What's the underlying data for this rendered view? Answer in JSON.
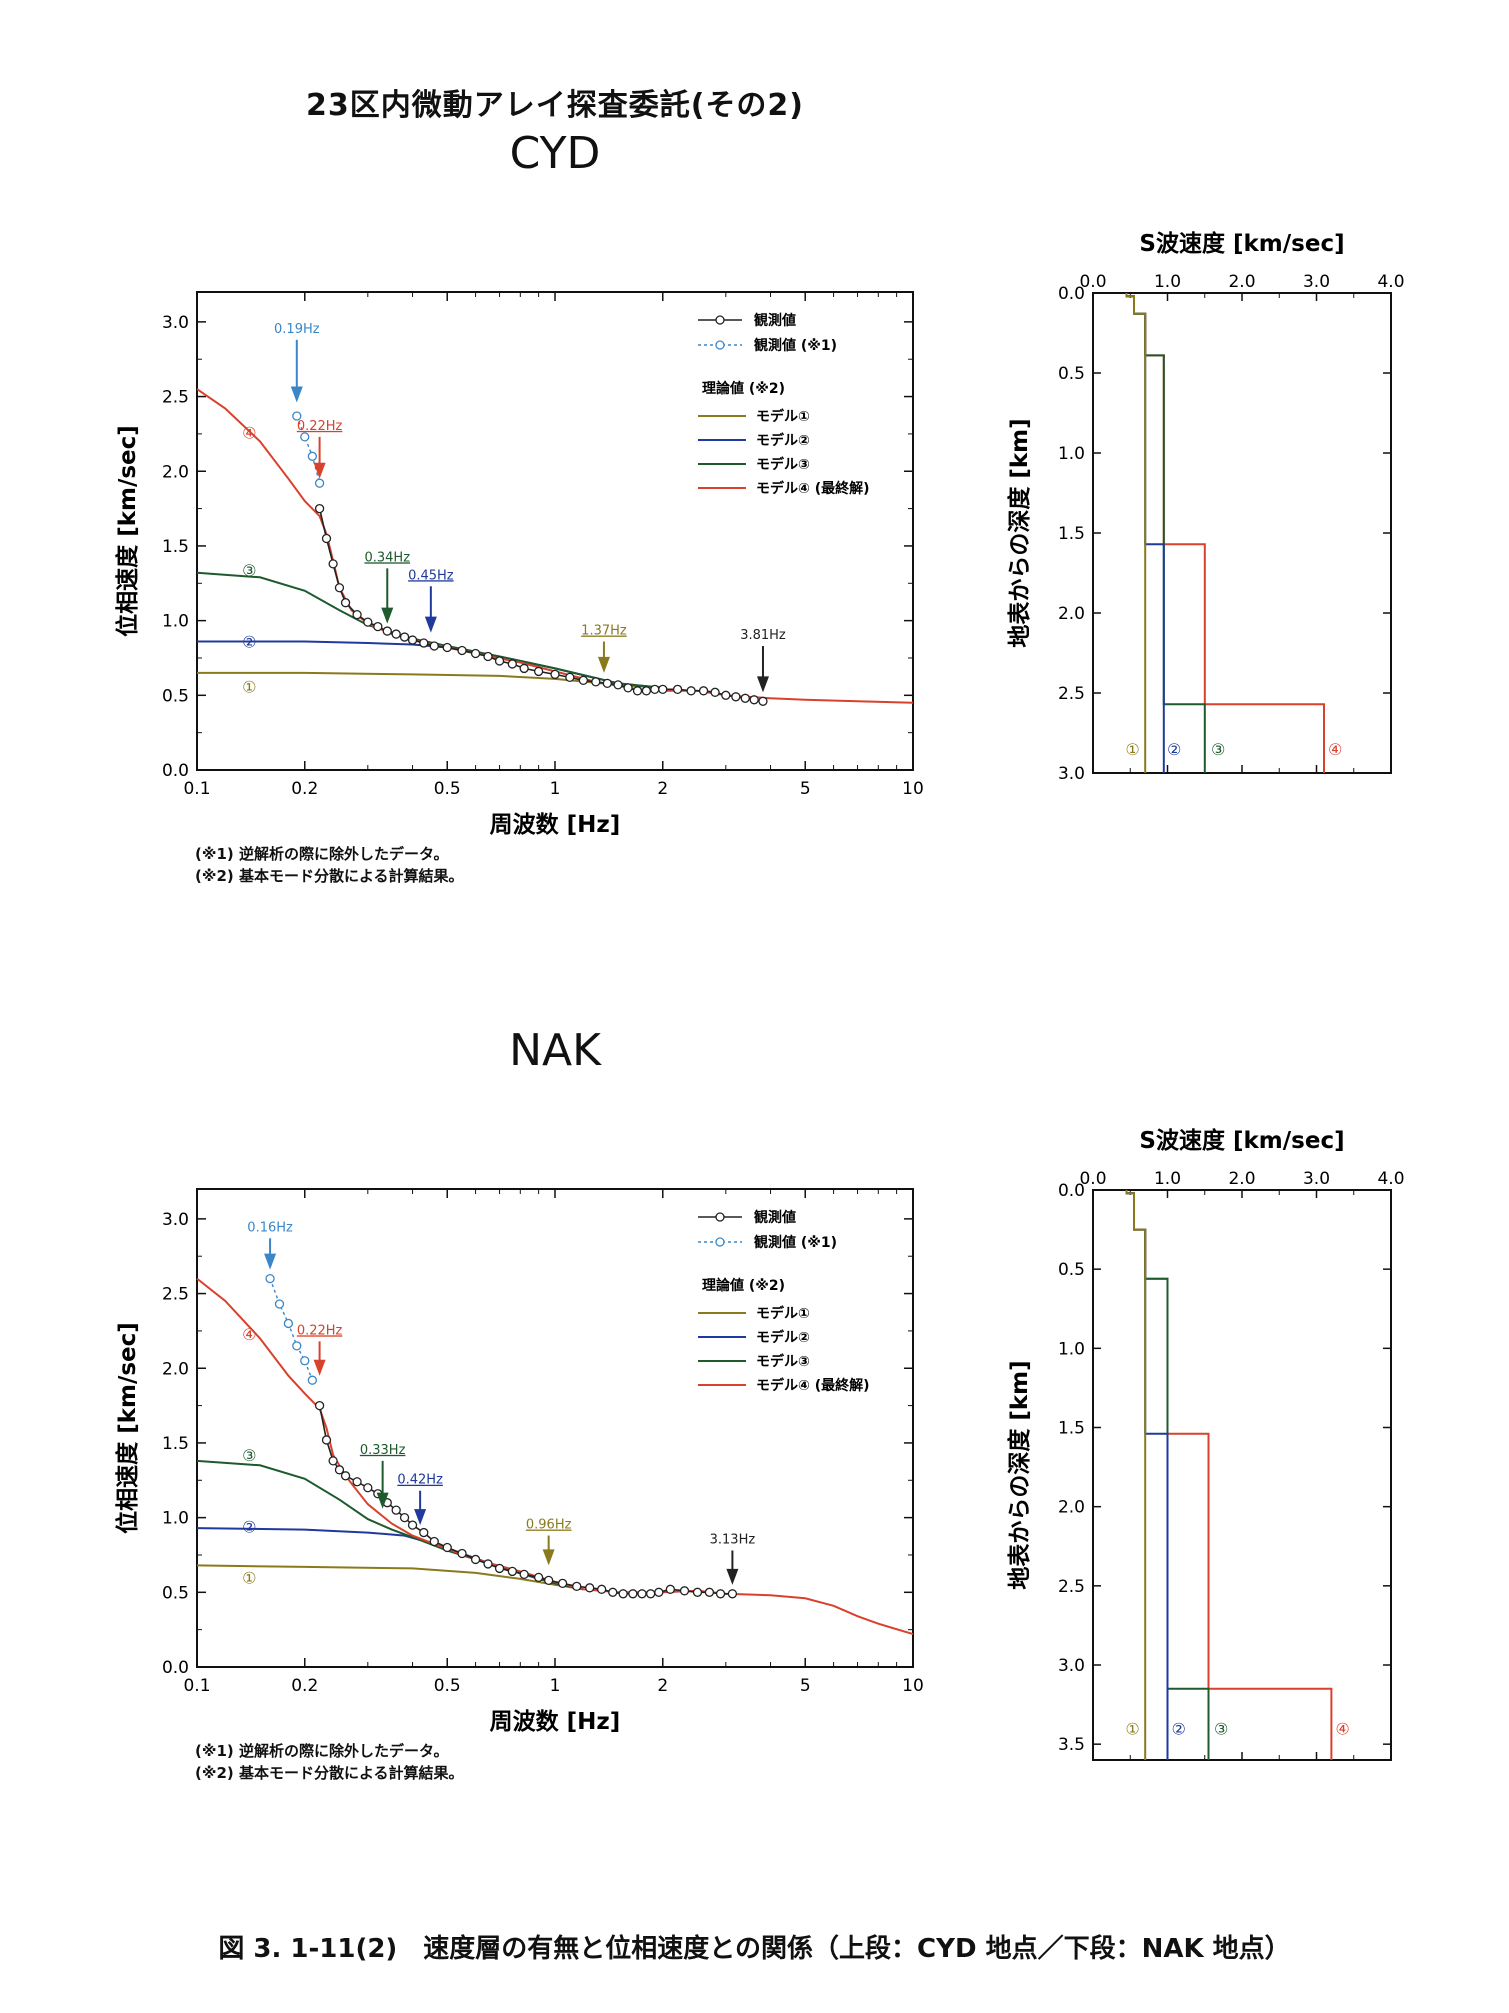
{
  "header": {
    "title": "23区内微動アレイ探査委託(その2)",
    "site_top": "CYD",
    "site_bottom": "NAK"
  },
  "notes": {
    "note1": "(※1) 逆解析の際に除外したデータ。",
    "note2": "(※2) 基本モード分散による計算結果。"
  },
  "caption": "図 3. 1-11(2)　速度層の有無と位相速度との関係（上段：CYD 地点／下段：NAK 地点）",
  "colors": {
    "observed": "#222222",
    "excluded": "#3a86c8",
    "model1": "#8a7a1c",
    "model2": "#1f3a9c",
    "model3": "#1e5a2e",
    "model4": "#d8412b"
  },
  "legend": {
    "observed": "観測値",
    "excluded": "観測値 (※1)",
    "theory_header": "理論値 (※2)",
    "model1": "モデル①",
    "model2": "モデル②",
    "model3": "モデル③",
    "model4": "モデル④ (最終解)"
  },
  "markers": [
    "①",
    "②",
    "③",
    "④"
  ],
  "chart_data": [
    {
      "id": "cyd-dispersion",
      "type": "line",
      "xlabel": "周波数 [Hz]",
      "ylabel": "位相速度 [km/sec]",
      "xscale": "log",
      "xlim": [
        0.1,
        10
      ],
      "ylim": [
        0.0,
        3.2
      ],
      "xticks": [
        0.1,
        0.2,
        0.5,
        1,
        2,
        5,
        10
      ],
      "xtick_labels": [
        "0.1",
        "0.2",
        "0.5",
        "1",
        "2",
        "5",
        "10"
      ],
      "yticks": [
        0.0,
        0.5,
        1.0,
        1.5,
        2.0,
        2.5,
        3.0
      ],
      "ytick_labels": [
        "0.0",
        "0.5",
        "1.0",
        "1.5",
        "2.0",
        "2.5",
        "3.0"
      ],
      "legend_position": "top-right",
      "series": [
        {
          "name": "モデル①",
          "key": "model1",
          "x": [
            0.1,
            0.2,
            0.4,
            0.7,
            1.0,
            1.5,
            2.0
          ],
          "y": [
            0.65,
            0.65,
            0.64,
            0.63,
            0.61,
            0.57,
            0.55
          ]
        },
        {
          "name": "モデル②",
          "key": "model2",
          "x": [
            0.1,
            0.2,
            0.3,
            0.4,
            0.5,
            0.7,
            1.0,
            1.5,
            2.0
          ],
          "y": [
            0.86,
            0.86,
            0.85,
            0.84,
            0.82,
            0.76,
            0.68,
            0.58,
            0.55
          ]
        },
        {
          "name": "モデル③",
          "key": "model3",
          "x": [
            0.1,
            0.15,
            0.2,
            0.25,
            0.3,
            0.4,
            0.5,
            0.7,
            1.0,
            1.5,
            2.0
          ],
          "y": [
            1.32,
            1.29,
            1.2,
            1.07,
            0.97,
            0.88,
            0.83,
            0.76,
            0.68,
            0.58,
            0.55
          ]
        },
        {
          "name": "モデル④ (最終解)",
          "key": "model4",
          "x": [
            0.1,
            0.12,
            0.15,
            0.18,
            0.2,
            0.22,
            0.23,
            0.24,
            0.25,
            0.27,
            0.3,
            0.35,
            0.4,
            0.5,
            0.6,
            0.8,
            1.0,
            1.3,
            1.7,
            2.0,
            2.5,
            3.0,
            4.0,
            5.0,
            7.0,
            10.0
          ],
          "y": [
            2.55,
            2.42,
            2.2,
            1.95,
            1.8,
            1.7,
            1.58,
            1.4,
            1.22,
            1.07,
            0.98,
            0.91,
            0.87,
            0.82,
            0.78,
            0.72,
            0.66,
            0.59,
            0.54,
            0.53,
            0.53,
            0.5,
            0.48,
            0.47,
            0.46,
            0.45
          ]
        },
        {
          "name": "観測値",
          "key": "observed",
          "x": [
            0.22,
            0.23,
            0.24,
            0.25,
            0.26,
            0.28,
            0.3,
            0.32,
            0.34,
            0.36,
            0.38,
            0.4,
            0.43,
            0.46,
            0.5,
            0.55,
            0.6,
            0.65,
            0.7,
            0.76,
            0.82,
            0.9,
            1.0,
            1.1,
            1.2,
            1.3,
            1.4,
            1.5,
            1.6,
            1.7,
            1.8,
            1.9,
            2.0,
            2.2,
            2.4,
            2.6,
            2.8,
            3.0,
            3.2,
            3.4,
            3.6,
            3.81
          ],
          "y": [
            1.75,
            1.55,
            1.38,
            1.22,
            1.12,
            1.04,
            0.99,
            0.96,
            0.93,
            0.91,
            0.89,
            0.87,
            0.85,
            0.83,
            0.82,
            0.8,
            0.78,
            0.76,
            0.73,
            0.71,
            0.68,
            0.66,
            0.64,
            0.62,
            0.6,
            0.59,
            0.58,
            0.57,
            0.55,
            0.53,
            0.53,
            0.54,
            0.54,
            0.54,
            0.53,
            0.53,
            0.52,
            0.5,
            0.49,
            0.48,
            0.47,
            0.46
          ]
        },
        {
          "name": "観測値 (※1)",
          "key": "excluded",
          "x": [
            0.19,
            0.2,
            0.21,
            0.22
          ],
          "y": [
            2.37,
            2.23,
            2.1,
            1.92
          ]
        }
      ],
      "arrows": [
        {
          "freq": 0.19,
          "label": "0.19Hz",
          "key": "excluded",
          "top": 2.88,
          "bottom": 2.46
        },
        {
          "freq": 0.22,
          "label": "0.22Hz",
          "key": "model4",
          "top": 2.23,
          "bottom": 1.95
        },
        {
          "freq": 0.34,
          "label": "0.34Hz",
          "key": "model3",
          "top": 1.35,
          "bottom": 0.98
        },
        {
          "freq": 0.45,
          "label": "0.45Hz",
          "key": "model2",
          "top": 1.23,
          "bottom": 0.92
        },
        {
          "freq": 1.37,
          "label": "1.37Hz",
          "key": "model1",
          "top": 0.86,
          "bottom": 0.65
        },
        {
          "freq": 3.81,
          "label": "3.81Hz",
          "key": "observed",
          "top": 0.83,
          "bottom": 0.52
        }
      ],
      "marker_positions": [
        {
          "label": "④",
          "x": 0.14,
          "y": 2.26,
          "key": "model4"
        },
        {
          "label": "③",
          "x": 0.14,
          "y": 1.34,
          "key": "model3"
        },
        {
          "label": "②",
          "x": 0.14,
          "y": 0.86,
          "key": "model2"
        },
        {
          "label": "①",
          "x": 0.14,
          "y": 0.56,
          "key": "model1"
        }
      ]
    },
    {
      "id": "cyd-profile",
      "type": "line",
      "title": "S波速度 [km/sec]",
      "ylabel": "地表からの深度 [km]",
      "xlim": [
        0.0,
        4.0
      ],
      "ylim": [
        0.0,
        3.0
      ],
      "y_inverted": true,
      "xticks": [
        0.0,
        1.0,
        2.0,
        3.0,
        4.0
      ],
      "xtick_labels": [
        "0.0",
        "1.0",
        "2.0",
        "3.0",
        "4.0"
      ],
      "yticks": [
        0.0,
        0.5,
        1.0,
        1.5,
        2.0,
        2.5,
        3.0
      ],
      "ytick_labels": [
        "0.0",
        "0.5",
        "1.0",
        "1.5",
        "2.0",
        "2.5",
        "3.0"
      ],
      "series": [
        {
          "name": "モデル①",
          "key": "model1",
          "vs": [
            0.45,
            0.55,
            0.7
          ],
          "top": [
            0.0,
            0.02,
            0.13
          ],
          "bottom": [
            0.02,
            0.13,
            3.0
          ]
        },
        {
          "name": "モデル②",
          "key": "model2",
          "vs": [
            0.45,
            0.55,
            0.7,
            0.95
          ],
          "top": [
            0.0,
            0.02,
            0.13,
            1.57
          ],
          "bottom": [
            0.02,
            0.13,
            1.57,
            3.0
          ]
        },
        {
          "name": "モデル③",
          "key": "model3",
          "vs": [
            0.45,
            0.55,
            0.7,
            0.95,
            1.5
          ],
          "top": [
            0.0,
            0.02,
            0.13,
            0.39,
            2.57
          ],
          "bottom": [
            0.02,
            0.13,
            0.39,
            2.57,
            3.0
          ]
        },
        {
          "name": "モデル④ (最終解)",
          "key": "model4",
          "vs": [
            0.45,
            0.55,
            0.7,
            0.95,
            1.5,
            3.1
          ],
          "top": [
            0.0,
            0.02,
            0.13,
            0.39,
            1.57,
            2.57
          ],
          "bottom": [
            0.02,
            0.13,
            0.39,
            1.57,
            2.57,
            3.0
          ]
        }
      ],
      "marker_positions": [
        {
          "label": "①",
          "x": 0.53,
          "y": 2.85,
          "key": "model1"
        },
        {
          "label": "②",
          "x": 1.09,
          "y": 2.85,
          "key": "model2"
        },
        {
          "label": "③",
          "x": 1.68,
          "y": 2.85,
          "key": "model3"
        },
        {
          "label": "④",
          "x": 3.25,
          "y": 2.85,
          "key": "model4"
        }
      ]
    },
    {
      "id": "nak-dispersion",
      "type": "line",
      "xlabel": "周波数 [Hz]",
      "ylabel": "位相速度 [km/sec]",
      "xscale": "log",
      "xlim": [
        0.1,
        10
      ],
      "ylim": [
        0.0,
        3.2
      ],
      "xticks": [
        0.1,
        0.2,
        0.5,
        1,
        2,
        5,
        10
      ],
      "xtick_labels": [
        "0.1",
        "0.2",
        "0.5",
        "1",
        "2",
        "5",
        "10"
      ],
      "yticks": [
        0.0,
        0.5,
        1.0,
        1.5,
        2.0,
        2.5,
        3.0
      ],
      "ytick_labels": [
        "0.0",
        "0.5",
        "1.0",
        "1.5",
        "2.0",
        "2.5",
        "3.0"
      ],
      "legend_position": "top-right",
      "series": [
        {
          "name": "モデル①",
          "key": "model1",
          "x": [
            0.1,
            0.2,
            0.4,
            0.6,
            0.8,
            1.0,
            1.2
          ],
          "y": [
            0.68,
            0.67,
            0.66,
            0.63,
            0.59,
            0.55,
            0.52
          ]
        },
        {
          "name": "モデル②",
          "key": "model2",
          "x": [
            0.1,
            0.2,
            0.3,
            0.38,
            0.45,
            0.55,
            0.7,
            0.9,
            1.0,
            1.2
          ],
          "y": [
            0.93,
            0.92,
            0.9,
            0.88,
            0.83,
            0.76,
            0.67,
            0.59,
            0.56,
            0.52
          ]
        },
        {
          "name": "モデル③",
          "key": "model3",
          "x": [
            0.1,
            0.15,
            0.2,
            0.25,
            0.3,
            0.35,
            0.42,
            0.5,
            0.7,
            1.0,
            1.2
          ],
          "y": [
            1.38,
            1.35,
            1.26,
            1.12,
            0.99,
            0.92,
            0.85,
            0.78,
            0.67,
            0.56,
            0.52
          ]
        },
        {
          "name": "モデル④ (最終解)",
          "key": "model4",
          "x": [
            0.1,
            0.12,
            0.15,
            0.18,
            0.2,
            0.22,
            0.23,
            0.24,
            0.26,
            0.28,
            0.3,
            0.35,
            0.4,
            0.5,
            0.6,
            0.8,
            1.0,
            1.2,
            1.5,
            2.0,
            2.5,
            3.0,
            4.0,
            5.0,
            6.0,
            7.0,
            8.0,
            10.0
          ],
          "y": [
            2.6,
            2.45,
            2.2,
            1.95,
            1.83,
            1.73,
            1.6,
            1.42,
            1.28,
            1.18,
            1.09,
            0.96,
            0.88,
            0.79,
            0.72,
            0.64,
            0.57,
            0.52,
            0.5,
            0.5,
            0.51,
            0.49,
            0.48,
            0.46,
            0.41,
            0.34,
            0.29,
            0.22
          ]
        },
        {
          "name": "観測値",
          "key": "observed",
          "x": [
            0.22,
            0.23,
            0.24,
            0.25,
            0.26,
            0.28,
            0.3,
            0.32,
            0.34,
            0.36,
            0.38,
            0.4,
            0.43,
            0.46,
            0.5,
            0.55,
            0.6,
            0.65,
            0.7,
            0.76,
            0.82,
            0.9,
            0.96,
            1.05,
            1.15,
            1.25,
            1.35,
            1.45,
            1.55,
            1.65,
            1.75,
            1.85,
            1.95,
            2.1,
            2.3,
            2.5,
            2.7,
            2.9,
            3.13
          ],
          "y": [
            1.75,
            1.52,
            1.38,
            1.32,
            1.28,
            1.24,
            1.2,
            1.16,
            1.1,
            1.05,
            1.0,
            0.95,
            0.9,
            0.84,
            0.8,
            0.76,
            0.72,
            0.69,
            0.66,
            0.64,
            0.62,
            0.6,
            0.58,
            0.56,
            0.54,
            0.53,
            0.52,
            0.5,
            0.49,
            0.49,
            0.49,
            0.49,
            0.5,
            0.52,
            0.51,
            0.5,
            0.5,
            0.49,
            0.49
          ]
        },
        {
          "name": "観測値 (※1)",
          "key": "excluded",
          "x": [
            0.16,
            0.17,
            0.18,
            0.19,
            0.2,
            0.21
          ],
          "y": [
            2.6,
            2.43,
            2.3,
            2.15,
            2.05,
            1.92
          ]
        }
      ],
      "arrows": [
        {
          "freq": 0.16,
          "label": "0.16Hz",
          "key": "excluded",
          "top": 2.87,
          "bottom": 2.66
        },
        {
          "freq": 0.22,
          "label": "0.22Hz",
          "key": "model4",
          "top": 2.18,
          "bottom": 1.95
        },
        {
          "freq": 0.33,
          "label": "0.33Hz",
          "key": "model3",
          "top": 1.38,
          "bottom": 1.06
        },
        {
          "freq": 0.42,
          "label": "0.42Hz",
          "key": "model2",
          "top": 1.18,
          "bottom": 0.95
        },
        {
          "freq": 0.96,
          "label": "0.96Hz",
          "key": "model1",
          "top": 0.88,
          "bottom": 0.68
        },
        {
          "freq": 3.13,
          "label": "3.13Hz",
          "key": "observed",
          "top": 0.78,
          "bottom": 0.55
        }
      ],
      "marker_positions": [
        {
          "label": "④",
          "x": 0.14,
          "y": 2.23,
          "key": "model4"
        },
        {
          "label": "③",
          "x": 0.14,
          "y": 1.42,
          "key": "model3"
        },
        {
          "label": "②",
          "x": 0.14,
          "y": 0.94,
          "key": "model2"
        },
        {
          "label": "①",
          "x": 0.14,
          "y": 0.6,
          "key": "model1"
        }
      ]
    },
    {
      "id": "nak-profile",
      "type": "line",
      "title": "S波速度 [km/sec]",
      "ylabel": "地表からの深度 [km]",
      "xlim": [
        0.0,
        4.0
      ],
      "ylim": [
        0.0,
        3.6
      ],
      "y_inverted": true,
      "xticks": [
        0.0,
        1.0,
        2.0,
        3.0,
        4.0
      ],
      "xtick_labels": [
        "0.0",
        "1.0",
        "2.0",
        "3.0",
        "4.0"
      ],
      "yticks": [
        0.0,
        0.5,
        1.0,
        1.5,
        2.0,
        2.5,
        3.0,
        3.5
      ],
      "ytick_labels": [
        "0.0",
        "0.5",
        "1.0",
        "1.5",
        "2.0",
        "2.5",
        "3.0",
        "3.5"
      ],
      "series": [
        {
          "name": "モデル①",
          "key": "model1",
          "vs": [
            0.45,
            0.55,
            0.7
          ],
          "top": [
            0.0,
            0.02,
            0.25
          ],
          "bottom": [
            0.02,
            0.25,
            3.6
          ]
        },
        {
          "name": "モデル②",
          "key": "model2",
          "vs": [
            0.45,
            0.55,
            0.7,
            1.0
          ],
          "top": [
            0.0,
            0.02,
            0.25,
            1.54
          ],
          "bottom": [
            0.02,
            0.25,
            1.54,
            3.6
          ]
        },
        {
          "name": "モデル③",
          "key": "model3",
          "vs": [
            0.45,
            0.55,
            0.7,
            1.0,
            1.55
          ],
          "top": [
            0.0,
            0.02,
            0.25,
            0.56,
            3.15
          ],
          "bottom": [
            0.02,
            0.25,
            0.56,
            3.15,
            3.6
          ]
        },
        {
          "name": "モデル④ (最終解)",
          "key": "model4",
          "vs": [
            0.45,
            0.55,
            0.7,
            1.0,
            1.55,
            3.2
          ],
          "top": [
            0.0,
            0.02,
            0.25,
            0.56,
            1.54,
            3.15
          ],
          "bottom": [
            0.02,
            0.25,
            0.56,
            1.54,
            3.15,
            3.6
          ]
        }
      ],
      "marker_positions": [
        {
          "label": "①",
          "x": 0.53,
          "y": 3.4,
          "key": "model1"
        },
        {
          "label": "②",
          "x": 1.15,
          "y": 3.4,
          "key": "model2"
        },
        {
          "label": "③",
          "x": 1.72,
          "y": 3.4,
          "key": "model3"
        },
        {
          "label": "④",
          "x": 3.35,
          "y": 3.4,
          "key": "model4"
        }
      ]
    }
  ]
}
